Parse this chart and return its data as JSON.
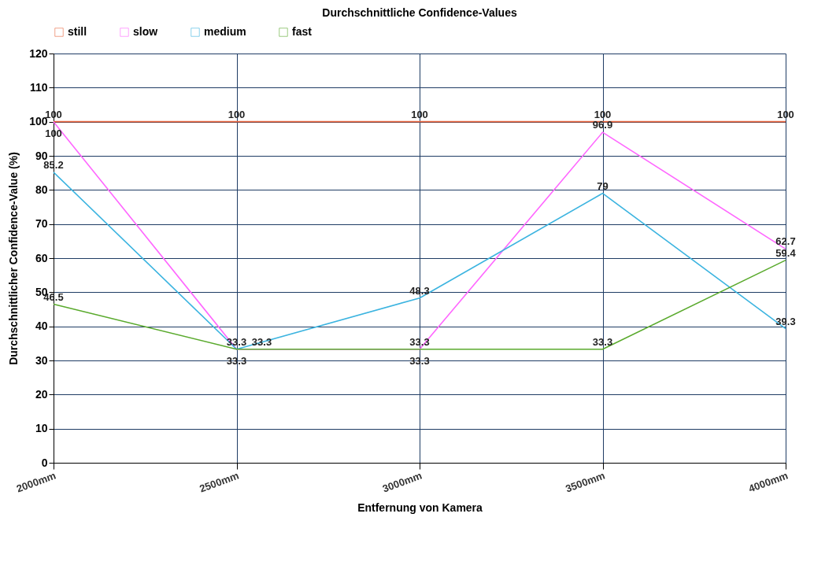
{
  "chart_data": {
    "type": "line",
    "title": "Durchschnittliche Confidence-Values",
    "xlabel": "Entfernung von Kamera",
    "ylabel": "Durchschnittlicher Confidence-Value (%)",
    "categories": [
      "2000mm",
      "2500mm",
      "3000mm",
      "3500mm",
      "4000mm"
    ],
    "series": [
      {
        "name": "still",
        "color": "#e8643c",
        "values": [
          100,
          100,
          100,
          100,
          100
        ]
      },
      {
        "name": "slow",
        "color": "#ff66ff",
        "values": [
          100,
          33.3,
          33.3,
          96.9,
          62.7
        ]
      },
      {
        "name": "medium",
        "color": "#3cb4e0",
        "values": [
          85.2,
          33.3,
          48.3,
          79,
          39.3
        ]
      },
      {
        "name": "fast",
        "color": "#5aaa2d",
        "values": [
          46.5,
          33.3,
          33.3,
          33.3,
          59.4
        ]
      }
    ],
    "ylim": [
      0,
      120
    ],
    "yticks": [
      0,
      10,
      20,
      30,
      40,
      50,
      60,
      70,
      80,
      90,
      100,
      110,
      120
    ],
    "grid": true,
    "legend": "top left",
    "data_labels": true,
    "marker": "none",
    "line_style": "solid"
  }
}
